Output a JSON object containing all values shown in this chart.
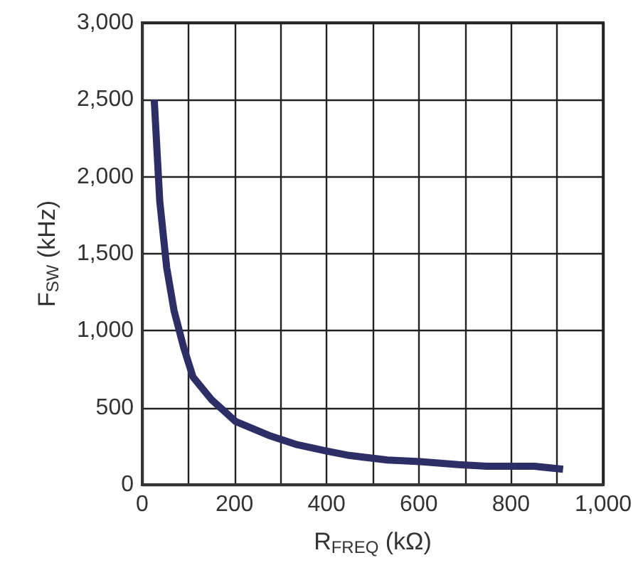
{
  "chart_data": {
    "type": "line",
    "xlabel": "R$_{FREQ}$ (kΩ)",
    "ylabel": "F$_{SW}$ (kHz)",
    "x": [
      26,
      38,
      53,
      69,
      90,
      110,
      151,
      203,
      275,
      336,
      398,
      449,
      532,
      603,
      686,
      748,
      851,
      913
    ],
    "series": [
      {
        "color": "#2e2e66",
        "values": [
          2500,
          1840,
          1410,
          1130,
          890,
          700,
          550,
          410,
          320,
          260,
          220,
          190,
          160,
          150,
          130,
          120,
          120,
          100
        ]
      }
    ],
    "xlim": [
      0,
      1000
    ],
    "xticks": [
      0,
      {
        "value": 100,
        "label": null
      },
      200,
      {
        "value": 300,
        "label": null
      },
      400,
      {
        "value": 500,
        "label": null
      },
      600,
      {
        "value": 700,
        "label": null
      },
      800,
      {
        "value": 900,
        "label": null
      },
      {
        "value": 1000,
        "label": "1,000"
      }
    ],
    "ylim": [
      0,
      3000
    ],
    "yticks": [
      0,
      500,
      {
        "value": 1000,
        "label": "1,000"
      },
      {
        "value": 1500,
        "label": "1,500"
      },
      {
        "value": 2000,
        "label": "2,000"
      },
      {
        "value": 2500,
        "label": "2,500"
      },
      {
        "value": 3000,
        "label": "3,000"
      }
    ],
    "grid": true,
    "marker": "none",
    "line_style": "solid"
  }
}
